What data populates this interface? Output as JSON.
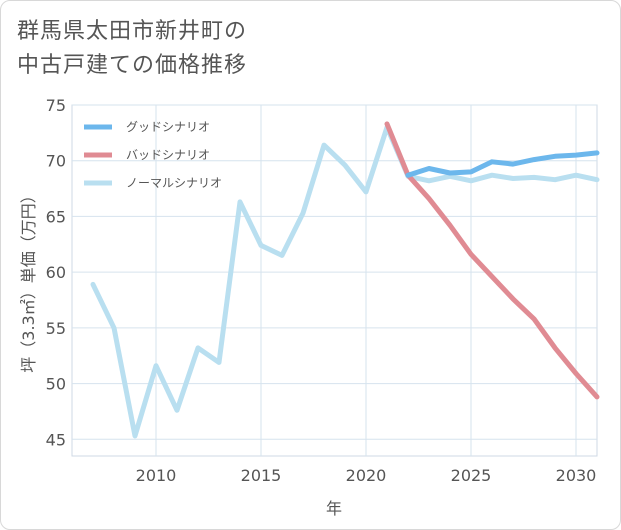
{
  "title": {
    "line1": "群馬県太田市新井町の",
    "line2": "中古戸建ての価格推移"
  },
  "chart_data": {
    "type": "line",
    "title": "群馬県太田市新井町の中古戸建ての価格推移",
    "xlabel": "年",
    "ylabel": "坪（3.3㎡）単価（万円）",
    "xlim": [
      2006,
      2031
    ],
    "ylim": [
      43.5,
      75
    ],
    "xticks": [
      2010,
      2015,
      2020,
      2025,
      2030
    ],
    "yticks": [
      45,
      50,
      55,
      60,
      65,
      70,
      75
    ],
    "legend_position": "top-left",
    "series": [
      {
        "name": "グッドシナリオ",
        "color": "#6cb7ec",
        "x": [
          2022,
          2023,
          2024,
          2025,
          2026,
          2027,
          2028,
          2029,
          2030,
          2031
        ],
        "values": [
          68.7,
          69.3,
          68.9,
          69.0,
          69.9,
          69.7,
          70.1,
          70.4,
          70.5,
          70.7
        ]
      },
      {
        "name": "バッドシナリオ",
        "color": "#e08b93",
        "x": [
          2021,
          2022,
          2023,
          2024,
          2025,
          2026,
          2027,
          2028,
          2029,
          2030,
          2031
        ],
        "values": [
          73.3,
          68.7,
          66.6,
          64.2,
          61.6,
          59.6,
          57.6,
          55.8,
          53.2,
          50.9,
          48.8
        ]
      },
      {
        "name": "ノーマルシナリオ",
        "color": "#b9dff0",
        "x": [
          2007,
          2008,
          2009,
          2010,
          2011,
          2012,
          2013,
          2014,
          2015,
          2016,
          2017,
          2018,
          2019,
          2020,
          2021,
          2022,
          2023,
          2024,
          2025,
          2026,
          2027,
          2028,
          2029,
          2030,
          2031
        ],
        "values": [
          58.9,
          55.0,
          45.3,
          51.6,
          47.6,
          53.2,
          51.9,
          66.3,
          62.4,
          61.5,
          65.3,
          71.4,
          69.6,
          67.2,
          73.0,
          68.6,
          68.2,
          68.6,
          68.2,
          68.7,
          68.4,
          68.5,
          68.3,
          68.7,
          68.3
        ]
      }
    ]
  }
}
